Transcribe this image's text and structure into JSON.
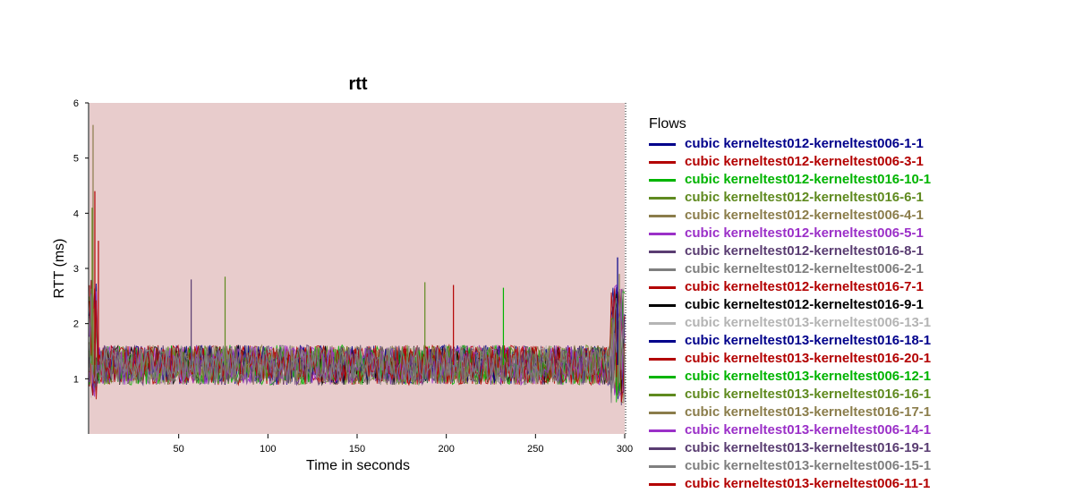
{
  "chart_data": {
    "type": "line",
    "title": "rtt",
    "xlabel": "Time in seconds",
    "ylabel": "RTT (ms)",
    "xlim": [
      0,
      300
    ],
    "ylim": [
      0,
      6
    ],
    "x_ticks": [
      50,
      100,
      150,
      200,
      250,
      300
    ],
    "y_ticks": [
      1,
      2,
      3,
      4,
      5,
      6
    ],
    "plot_background": "#e8cccc",
    "grid": false,
    "legend": {
      "title": "Flows",
      "placement": "right",
      "entries": [
        {
          "name": "cubic kerneltest012-kerneltest006-1-1",
          "color": "#00008b"
        },
        {
          "name": "cubic kerneltest012-kerneltest006-3-1",
          "color": "#b30000"
        },
        {
          "name": "cubic kerneltest012-kerneltest016-10-1",
          "color": "#00b400"
        },
        {
          "name": "cubic kerneltest012-kerneltest016-6-1",
          "color": "#5f8a1f"
        },
        {
          "name": "cubic kerneltest012-kerneltest006-4-1",
          "color": "#8b7d4b"
        },
        {
          "name": "cubic kerneltest012-kerneltest006-5-1",
          "color": "#9b30c8"
        },
        {
          "name": "cubic kerneltest012-kerneltest016-8-1",
          "color": "#5a3d72"
        },
        {
          "name": "cubic kerneltest012-kerneltest006-2-1",
          "color": "#7f7f7f"
        },
        {
          "name": "cubic kerneltest012-kerneltest016-7-1",
          "color": "#b30000"
        },
        {
          "name": "cubic kerneltest012-kerneltest016-9-1",
          "color": "#000000"
        },
        {
          "name": "cubic kerneltest013-kerneltest006-13-1",
          "color": "#b4b4b4"
        },
        {
          "name": "cubic kerneltest013-kerneltest016-18-1",
          "color": "#00008b"
        },
        {
          "name": "cubic kerneltest013-kerneltest016-20-1",
          "color": "#b30000"
        },
        {
          "name": "cubic kerneltest013-kerneltest006-12-1",
          "color": "#00b400"
        },
        {
          "name": "cubic kerneltest013-kerneltest016-16-1",
          "color": "#5f8a1f"
        },
        {
          "name": "cubic kerneltest013-kerneltest016-17-1",
          "color": "#8b7d4b"
        },
        {
          "name": "cubic kerneltest013-kerneltest006-14-1",
          "color": "#9b30c8"
        },
        {
          "name": "cubic kerneltest013-kerneltest016-19-1",
          "color": "#5a3d72"
        },
        {
          "name": "cubic kerneltest013-kerneltest006-15-1",
          "color": "#7f7f7f"
        },
        {
          "name": "cubic kerneltest013-kerneltest006-11-1",
          "color": "#b30000"
        }
      ]
    },
    "series_summary": {
      "baseline_rtt_range": [
        0.9,
        1.7
      ],
      "typical_rtt": 1.25,
      "startup_peak": {
        "x": 2,
        "y": 5.6
      },
      "end_peak": {
        "x": 296,
        "y": 3.2
      }
    },
    "spikes": [
      {
        "x": 2,
        "y": 5.6,
        "series": "cubic kerneltest012-kerneltest006-4-1"
      },
      {
        "x": 3,
        "y": 4.4,
        "series": "cubic kerneltest012-kerneltest006-3-1"
      },
      {
        "x": 1.5,
        "y": 4.1,
        "series": "cubic kerneltest012-kerneltest016-6-1"
      },
      {
        "x": 5,
        "y": 3.5,
        "series": "cubic kerneltest012-kerneltest016-7-1"
      },
      {
        "x": 57,
        "y": 2.8,
        "series": "cubic kerneltest012-kerneltest016-8-1"
      },
      {
        "x": 76,
        "y": 2.85,
        "series": "cubic kerneltest012-kerneltest016-6-1"
      },
      {
        "x": 188,
        "y": 2.75,
        "series": "cubic kerneltest012-kerneltest016-6-1"
      },
      {
        "x": 204,
        "y": 2.7,
        "series": "cubic kerneltest012-kerneltest016-7-1"
      },
      {
        "x": 232,
        "y": 2.65,
        "series": "cubic kerneltest012-kerneltest016-10-1"
      },
      {
        "x": 296,
        "y": 3.2,
        "series": "cubic kerneltest012-kerneltest006-1-1"
      },
      {
        "x": 297,
        "y": 2.9,
        "series": "cubic kerneltest012-kerneltest006-4-1"
      }
    ]
  }
}
